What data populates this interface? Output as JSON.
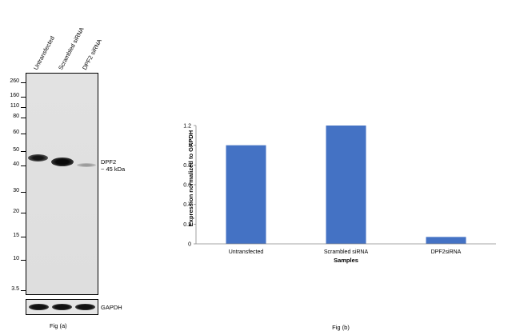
{
  "western_blot": {
    "lanes": [
      "Untransfected",
      "Scrambled siRNA",
      "DPF2 siRNA"
    ],
    "markers": [
      "260",
      "160",
      "110",
      "80",
      "60",
      "50",
      "40",
      "30",
      "20",
      "15",
      "10",
      "3.5"
    ],
    "target_label": "DPF2",
    "target_size": "~ 45 kDa",
    "control_label": "GAPDH",
    "caption": "Fig (a)"
  },
  "chart_data": {
    "type": "bar",
    "categories": [
      "Untransfected",
      "Scrambled siRNA",
      "DPF2siRNA"
    ],
    "values": [
      1.0,
      1.2,
      0.07
    ],
    "xlabel": "Samples",
    "ylabel": "Expression  normalized to GAPDH",
    "ylim": [
      0,
      1.2
    ],
    "yticks": [
      "0",
      "0.2",
      "0.4",
      "0.6",
      "0.8",
      "1",
      "1.2"
    ],
    "bar_color": "#4472c4",
    "grid": false,
    "caption": "Fig (b)"
  }
}
